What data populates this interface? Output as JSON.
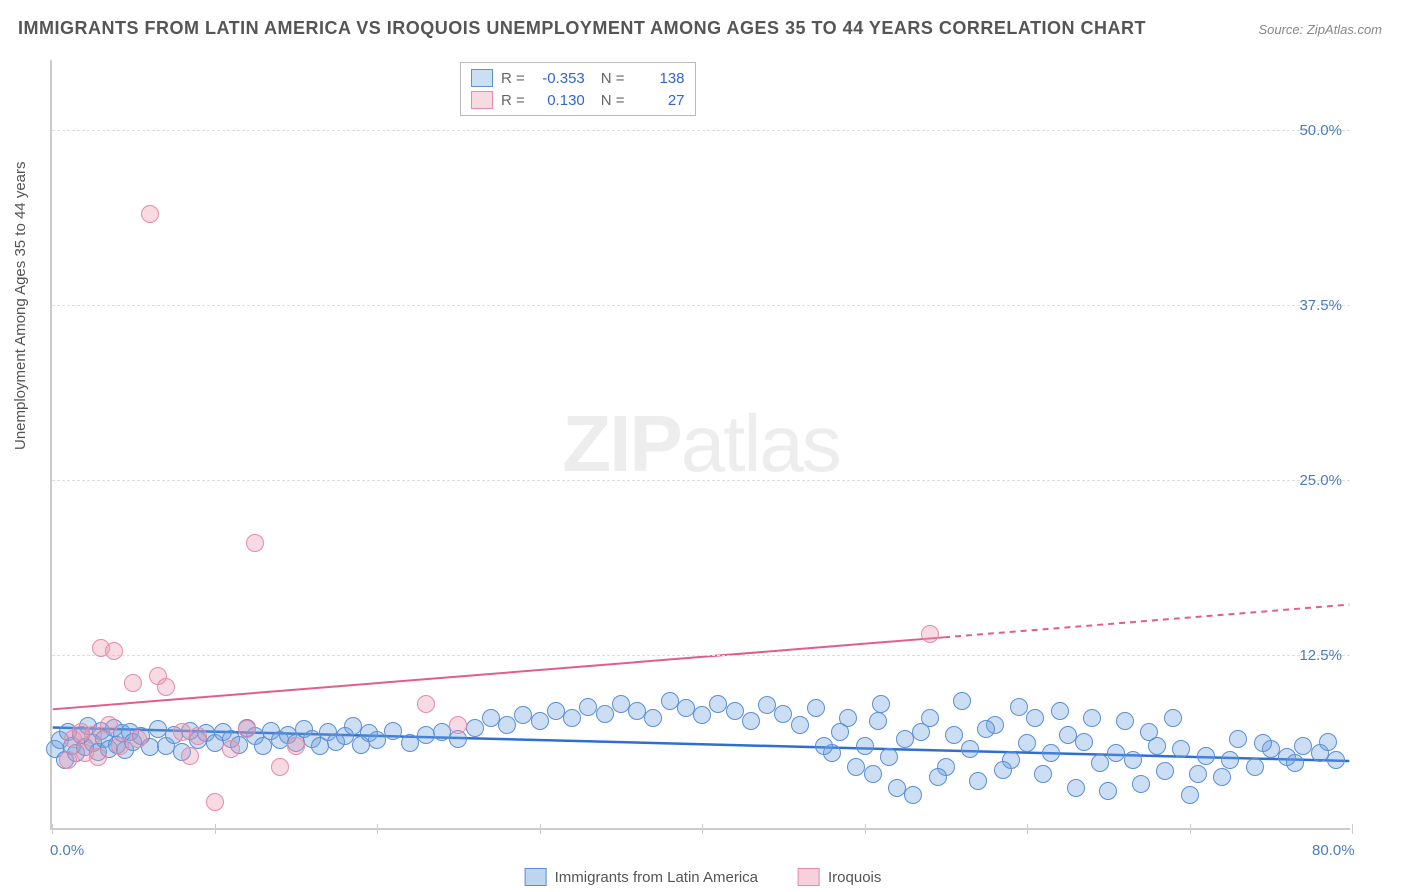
{
  "title": "IMMIGRANTS FROM LATIN AMERICA VS IROQUOIS UNEMPLOYMENT AMONG AGES 35 TO 44 YEARS CORRELATION CHART",
  "source": "Source: ZipAtlas.com",
  "watermark_bold": "ZIP",
  "watermark_thin": "atlas",
  "y_axis_label": "Unemployment Among Ages 35 to 44 years",
  "chart": {
    "type": "scatter",
    "xlim": [
      0,
      80
    ],
    "ylim": [
      0,
      55
    ],
    "x_ticks": [
      0,
      10,
      20,
      30,
      40,
      50,
      60,
      70,
      80
    ],
    "x_tick_labels": {
      "0": "0.0%",
      "80": "80.0%"
    },
    "y_grid": [
      12.5,
      25.0,
      37.5,
      50.0
    ],
    "y_tick_labels": [
      "12.5%",
      "25.0%",
      "37.5%",
      "50.0%"
    ],
    "background_color": "#ffffff",
    "grid_color": "#dddddd",
    "axis_color": "#cccccc",
    "marker_radius": 9,
    "marker_border_width": 1.5,
    "series": [
      {
        "name": "Immigrants from Latin America",
        "color_fill": "rgba(110,160,220,0.35)",
        "color_stroke": "#5b8fd6",
        "r_value": "-0.353",
        "n_value": "138",
        "trend": {
          "x1": 0,
          "y1": 7.2,
          "x2": 80,
          "y2": 4.8,
          "color": "#2e6fd1",
          "width": 2.5,
          "dash_after_x": null
        },
        "points": [
          [
            0.2,
            5.8
          ],
          [
            0.5,
            6.4
          ],
          [
            0.8,
            5.0
          ],
          [
            1.0,
            7.0
          ],
          [
            1.2,
            6.0
          ],
          [
            1.5,
            5.5
          ],
          [
            1.8,
            6.8
          ],
          [
            2.0,
            5.9
          ],
          [
            2.2,
            7.4
          ],
          [
            2.5,
            6.2
          ],
          [
            2.8,
            5.6
          ],
          [
            3.0,
            7.1
          ],
          [
            3.2,
            6.5
          ],
          [
            3.5,
            5.8
          ],
          [
            3.8,
            7.3
          ],
          [
            4.0,
            6.1
          ],
          [
            4.3,
            6.9
          ],
          [
            4.5,
            5.7
          ],
          [
            4.8,
            7.0
          ],
          [
            5.0,
            6.3
          ],
          [
            5.5,
            6.7
          ],
          [
            6.0,
            5.9
          ],
          [
            6.5,
            7.2
          ],
          [
            7.0,
            6.0
          ],
          [
            7.5,
            6.8
          ],
          [
            8.0,
            5.6
          ],
          [
            8.5,
            7.1
          ],
          [
            9.0,
            6.4
          ],
          [
            9.5,
            6.9
          ],
          [
            10.0,
            6.2
          ],
          [
            10.5,
            7.0
          ],
          [
            11.0,
            6.5
          ],
          [
            11.5,
            6.1
          ],
          [
            12.0,
            7.3
          ],
          [
            12.5,
            6.7
          ],
          [
            13.0,
            6.0
          ],
          [
            13.5,
            7.1
          ],
          [
            14.0,
            6.4
          ],
          [
            14.5,
            6.8
          ],
          [
            15.0,
            6.2
          ],
          [
            15.5,
            7.2
          ],
          [
            16.0,
            6.5
          ],
          [
            16.5,
            6.0
          ],
          [
            17.0,
            7.0
          ],
          [
            17.5,
            6.3
          ],
          [
            18.0,
            6.7
          ],
          [
            18.5,
            7.4
          ],
          [
            19.0,
            6.1
          ],
          [
            19.5,
            6.9
          ],
          [
            20.0,
            6.4
          ],
          [
            21.0,
            7.1
          ],
          [
            22.0,
            6.2
          ],
          [
            23.0,
            6.8
          ],
          [
            24.0,
            7.0
          ],
          [
            25.0,
            6.5
          ],
          [
            26.0,
            7.3
          ],
          [
            27.0,
            8.0
          ],
          [
            28.0,
            7.5
          ],
          [
            29.0,
            8.2
          ],
          [
            30.0,
            7.8
          ],
          [
            31.0,
            8.5
          ],
          [
            32.0,
            8.0
          ],
          [
            33.0,
            8.8
          ],
          [
            34.0,
            8.3
          ],
          [
            35.0,
            9.0
          ],
          [
            36.0,
            8.5
          ],
          [
            37.0,
            8.0
          ],
          [
            38.0,
            9.2
          ],
          [
            39.0,
            8.7
          ],
          [
            40.0,
            8.2
          ],
          [
            41.0,
            9.0
          ],
          [
            42.0,
            8.5
          ],
          [
            43.0,
            7.8
          ],
          [
            44.0,
            8.9
          ],
          [
            45.0,
            8.3
          ],
          [
            46.0,
            7.5
          ],
          [
            47.0,
            8.7
          ],
          [
            48.0,
            5.5
          ],
          [
            49.0,
            8.0
          ],
          [
            50.0,
            6.0
          ],
          [
            50.5,
            4.0
          ],
          [
            51.0,
            9.0
          ],
          [
            52.0,
            3.0
          ],
          [
            52.5,
            6.5
          ],
          [
            53.0,
            2.5
          ],
          [
            54.0,
            8.0
          ],
          [
            55.0,
            4.5
          ],
          [
            56.0,
            9.2
          ],
          [
            56.5,
            5.8
          ],
          [
            57.0,
            3.5
          ],
          [
            58.0,
            7.5
          ],
          [
            59.0,
            5.0
          ],
          [
            59.5,
            8.8
          ],
          [
            60.0,
            6.2
          ],
          [
            61.0,
            4.0
          ],
          [
            62.0,
            8.5
          ],
          [
            63.0,
            3.0
          ],
          [
            63.5,
            6.3
          ],
          [
            64.0,
            8.0
          ],
          [
            65.0,
            2.8
          ],
          [
            65.5,
            5.5
          ],
          [
            66.0,
            7.8
          ],
          [
            67.0,
            3.3
          ],
          [
            68.0,
            6.0
          ],
          [
            68.5,
            4.2
          ],
          [
            69.0,
            8.0
          ],
          [
            70.0,
            2.5
          ],
          [
            71.0,
            5.3
          ],
          [
            72.0,
            3.8
          ],
          [
            73.0,
            6.5
          ],
          [
            74.0,
            4.5
          ],
          [
            75.0,
            5.8
          ],
          [
            76.0,
            5.2
          ],
          [
            77.0,
            6.0
          ],
          [
            78.0,
            5.5
          ],
          [
            79.0,
            5.0
          ],
          [
            47.5,
            6.0
          ],
          [
            48.5,
            7.0
          ],
          [
            49.5,
            4.5
          ],
          [
            50.8,
            7.8
          ],
          [
            51.5,
            5.2
          ],
          [
            53.5,
            7.0
          ],
          [
            54.5,
            3.8
          ],
          [
            55.5,
            6.8
          ],
          [
            57.5,
            7.2
          ],
          [
            58.5,
            4.3
          ],
          [
            60.5,
            8.0
          ],
          [
            61.5,
            5.5
          ],
          [
            62.5,
            6.8
          ],
          [
            64.5,
            4.8
          ],
          [
            66.5,
            5.0
          ],
          [
            67.5,
            7.0
          ],
          [
            69.5,
            5.8
          ],
          [
            70.5,
            4.0
          ],
          [
            72.5,
            5.0
          ],
          [
            74.5,
            6.2
          ],
          [
            76.5,
            4.8
          ],
          [
            78.5,
            6.3
          ]
        ]
      },
      {
        "name": "Iroquois",
        "color_fill": "rgba(235,150,175,0.35)",
        "color_stroke": "#e88aa8",
        "r_value": "0.130",
        "n_value": "27",
        "trend": {
          "x1": 0,
          "y1": 8.5,
          "x2": 80,
          "y2": 16.0,
          "color": "#e25e8a",
          "width": 2,
          "dash_after_x": 55
        },
        "points": [
          [
            6.0,
            44.0
          ],
          [
            1.0,
            5.0
          ],
          [
            1.3,
            6.5
          ],
          [
            1.8,
            7.0
          ],
          [
            2.0,
            5.5
          ],
          [
            2.5,
            6.8
          ],
          [
            2.8,
            5.2
          ],
          [
            3.0,
            13.0
          ],
          [
            3.5,
            7.5
          ],
          [
            3.8,
            12.8
          ],
          [
            4.2,
            6.0
          ],
          [
            5.0,
            10.5
          ],
          [
            5.3,
            6.5
          ],
          [
            6.5,
            11.0
          ],
          [
            7.0,
            10.2
          ],
          [
            8.0,
            7.0
          ],
          [
            8.5,
            5.3
          ],
          [
            9.0,
            6.7
          ],
          [
            10.0,
            2.0
          ],
          [
            11.0,
            5.8
          ],
          [
            12.0,
            7.2
          ],
          [
            12.5,
            20.5
          ],
          [
            14.0,
            4.5
          ],
          [
            15.0,
            6.0
          ],
          [
            23.0,
            9.0
          ],
          [
            25.0,
            7.5
          ],
          [
            54.0,
            14.0
          ]
        ]
      }
    ],
    "bottom_legend": [
      {
        "label": "Immigrants from Latin America",
        "fill": "rgba(110,160,220,0.45)",
        "stroke": "#5b8fd6"
      },
      {
        "label": "Iroquois",
        "fill": "rgba(235,150,175,0.45)",
        "stroke": "#e88aa8"
      }
    ]
  }
}
